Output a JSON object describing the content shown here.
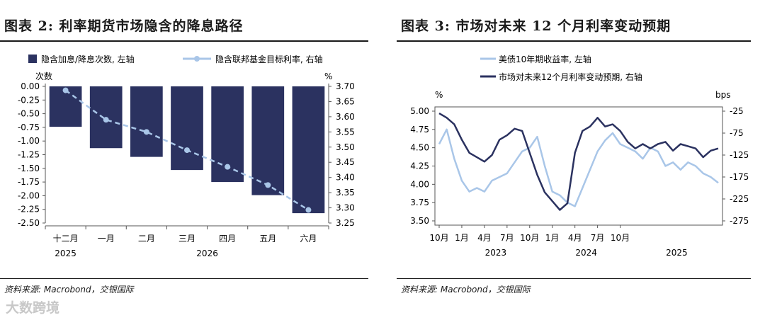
{
  "left": {
    "title": "图表 2: 利率期货市场隐含的降息路径",
    "source": "资料来源: Macrobond，交银国际",
    "chart_data": {
      "type": "bar",
      "categories": [
        "十二月",
        "一月",
        "二月",
        "三月",
        "四月",
        "五月",
        "六月"
      ],
      "year_labels": [
        "2025",
        "2026"
      ],
      "series": [
        {
          "name": "隐含加息/降息次数, 左轴",
          "type": "bar",
          "axis": "left",
          "values": [
            -0.74,
            -1.13,
            -1.29,
            -1.53,
            -1.75,
            -1.99,
            -2.32
          ],
          "color": "#2b3260"
        },
        {
          "name": "隐含联邦基金目标利率, 右轴",
          "type": "line",
          "axis": "right",
          "values": [
            3.687,
            3.59,
            3.55,
            3.49,
            3.435,
            3.375,
            3.293
          ],
          "color": "#a9c6e8"
        }
      ],
      "yleft_unit": "次数",
      "yright_unit": "%",
      "yleft_lim": [
        -2.5,
        0
      ],
      "yleft_ticks": [
        "0.00",
        "-0.25",
        "-0.50",
        "-0.75",
        "-1.00",
        "-1.25",
        "-1.50",
        "-1.75",
        "-2.00",
        "-2.25",
        "-2.50"
      ],
      "yright_lim": [
        3.25,
        3.7
      ],
      "yright_ticks": [
        "3.70",
        "3.65",
        "3.60",
        "3.55",
        "3.50",
        "3.45",
        "3.40",
        "3.35",
        "3.30",
        "3.25"
      ],
      "legend_position": "top"
    }
  },
  "right": {
    "title": "图表 3: 市场对未来 12 个月利率变动预期",
    "source": "资料来源: Macrobond，交银国际",
    "chart_data": {
      "type": "line",
      "x_months": [
        "2022-10",
        "2022-11",
        "2022-12",
        "2023-01",
        "2023-02",
        "2023-03",
        "2023-04",
        "2023-05",
        "2023-06",
        "2023-07",
        "2023-08",
        "2023-09",
        "2023-10",
        "2023-11",
        "2023-12",
        "2024-01",
        "2024-02",
        "2024-03",
        "2024-04",
        "2024-05",
        "2024-06",
        "2024-07",
        "2024-08",
        "2024-09",
        "2024-10",
        "2024-11",
        "2024-12",
        "2025-01",
        "2025-02",
        "2025-03",
        "2025-04",
        "2025-05",
        "2025-06",
        "2025-07",
        "2025-08",
        "2025-09",
        "2025-10",
        "2025-11"
      ],
      "series": [
        {
          "name": "美债10年期收益率, 左轴",
          "axis": "left",
          "color": "#a9c6e8",
          "values": [
            4.55,
            4.75,
            4.35,
            4.05,
            3.9,
            3.95,
            3.9,
            4.05,
            4.1,
            4.15,
            4.3,
            4.45,
            4.5,
            4.65,
            4.25,
            3.9,
            3.85,
            3.75,
            3.7,
            3.95,
            4.2,
            4.45,
            4.6,
            4.7,
            4.55,
            4.5,
            4.45,
            4.35,
            4.5,
            4.45,
            4.25,
            4.3,
            4.2,
            4.3,
            4.25,
            4.15,
            4.1,
            4.02
          ]
        },
        {
          "name": "市场对未来12个月利率变动预期, 右轴",
          "axis": "right",
          "color": "#2b3260",
          "values": [
            -30,
            -40,
            -55,
            -90,
            -120,
            -130,
            -140,
            -125,
            -90,
            -80,
            -65,
            -70,
            -120,
            -170,
            -210,
            -230,
            -250,
            -235,
            -120,
            -70,
            -60,
            -40,
            -60,
            -55,
            -70,
            -95,
            -110,
            -100,
            -110,
            -100,
            -95,
            -115,
            -100,
            -105,
            -110,
            -130,
            -115,
            -110
          ]
        }
      ],
      "yleft_unit": "%",
      "yright_unit": "bps",
      "yleft_lim": [
        3.5,
        5.0
      ],
      "yleft_ticks": [
        "5.00",
        "4.75",
        "4.50",
        "4.25",
        "4.00",
        "3.75",
        "3.50"
      ],
      "yright_lim": [
        -275,
        -25
      ],
      "yright_ticks": [
        "-25",
        "-75",
        "-125",
        "-175",
        "-225",
        "-275"
      ],
      "x_tick_labels": [
        "10月",
        "1月",
        "4月",
        "7月",
        "10月",
        "1月",
        "4月",
        "7月",
        "10月"
      ],
      "year_labels": [
        "2023",
        "2024",
        "2025"
      ],
      "legend_position": "top"
    }
  },
  "watermark": "大数跨境"
}
